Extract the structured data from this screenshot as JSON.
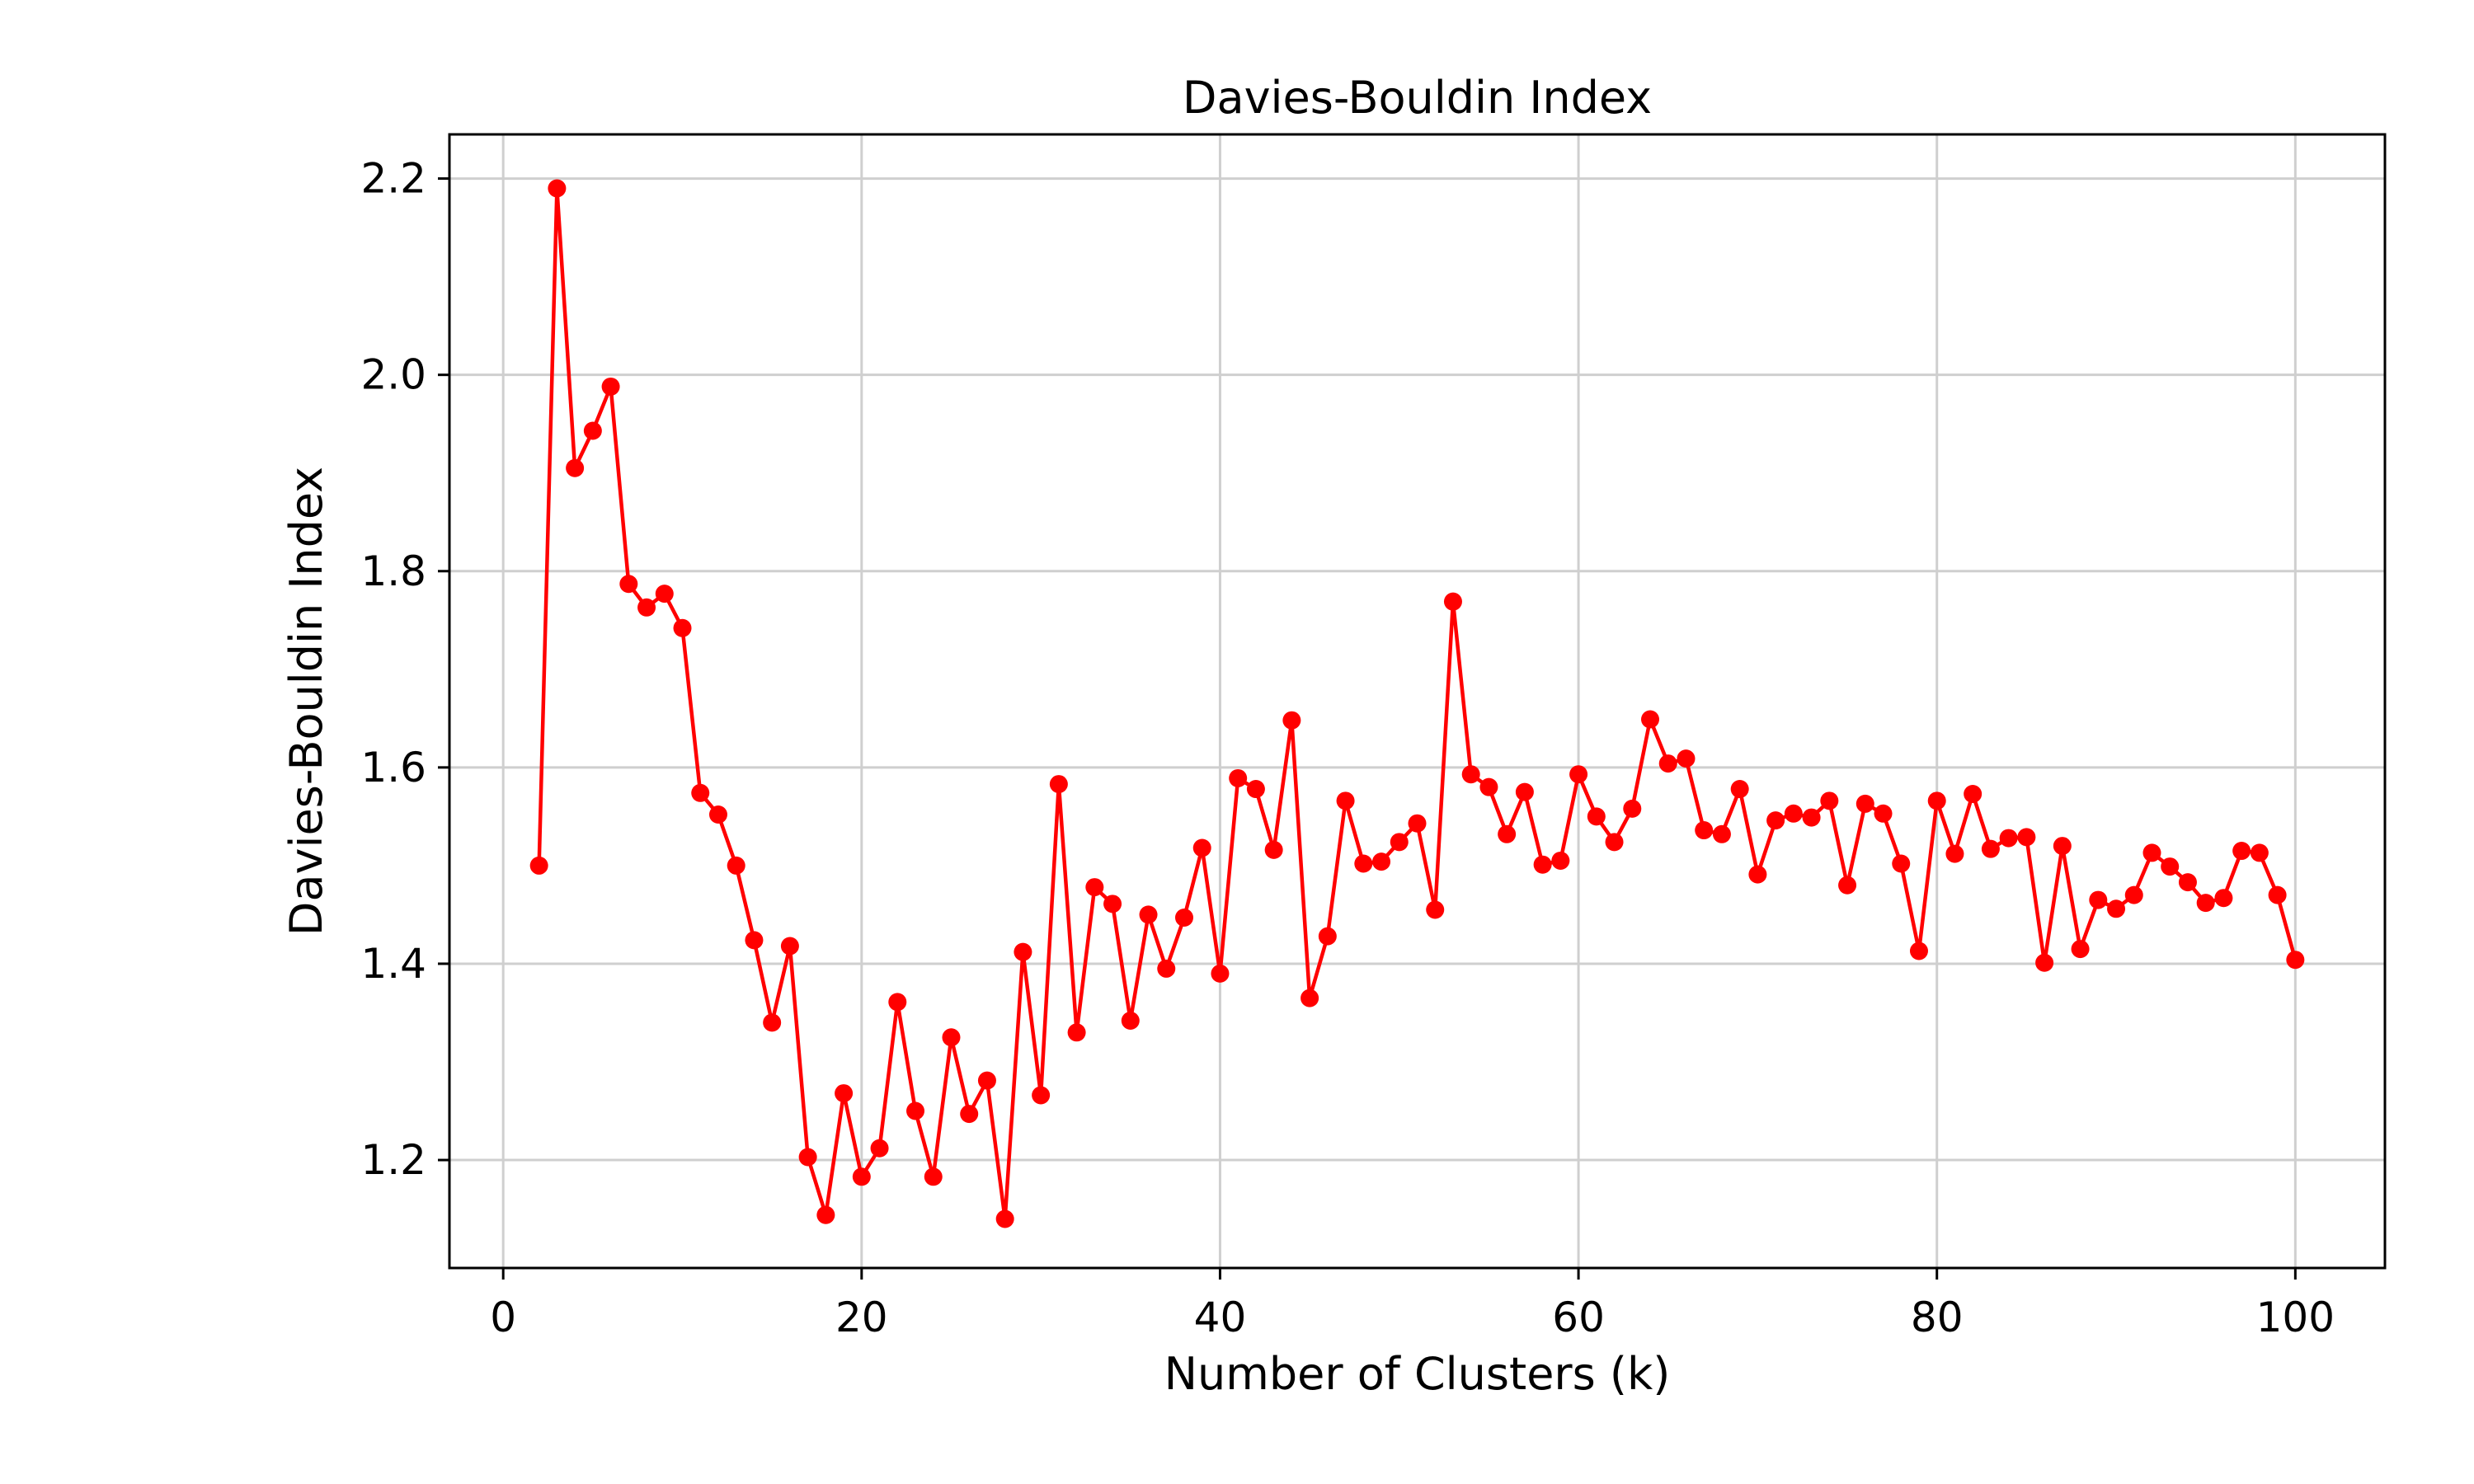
{
  "chart_data": {
    "type": "line",
    "title": "Davies-Bouldin Index",
    "xlabel": "Number of Clusters (k)",
    "ylabel": "Davies-Bouldin Index",
    "xlim": [
      -3,
      105
    ],
    "ylim": [
      1.09,
      2.245
    ],
    "xticks": [
      0,
      20,
      40,
      60,
      80,
      100
    ],
    "yticks": [
      1.2,
      1.4,
      1.6,
      1.8,
      2.0,
      2.2
    ],
    "xtick_labels": [
      "0",
      "20",
      "40",
      "60",
      "80",
      "100"
    ],
    "ytick_labels": [
      "1.2",
      "1.4",
      "1.6",
      "1.8",
      "2.0",
      "2.2"
    ],
    "grid": true,
    "line_color": "#ff0000",
    "series": [
      {
        "x": [
          2,
          3,
          4,
          5,
          6,
          7,
          8,
          9,
          10,
          11,
          12,
          13,
          14,
          15,
          16,
          17,
          18,
          19,
          20,
          21,
          22,
          23,
          24,
          25,
          26,
          27,
          28,
          29,
          30,
          31,
          32,
          33,
          34,
          35,
          36,
          37,
          38,
          39,
          40,
          41,
          42,
          43,
          44,
          45,
          46,
          47,
          48,
          49,
          50,
          51,
          52,
          53,
          54,
          55,
          56,
          57,
          58,
          59,
          60,
          61,
          62,
          63,
          64,
          65,
          66,
          67,
          68,
          69,
          70,
          71,
          72,
          73,
          74,
          75,
          76,
          77,
          78,
          79,
          80,
          81,
          82,
          83,
          84,
          85,
          86,
          87,
          88,
          89,
          90,
          91,
          92,
          93,
          94,
          95,
          96,
          97,
          98,
          99,
          100
        ],
        "y": [
          1.5,
          2.19,
          1.905,
          1.943,
          1.988,
          1.787,
          1.763,
          1.777,
          1.742,
          1.574,
          1.552,
          1.5,
          1.424,
          1.34,
          1.418,
          1.203,
          1.144,
          1.268,
          1.183,
          1.212,
          1.361,
          1.25,
          1.183,
          1.325,
          1.247,
          1.281,
          1.14,
          1.412,
          1.266,
          1.583,
          1.33,
          1.478,
          1.461,
          1.342,
          1.45,
          1.395,
          1.447,
          1.518,
          1.39,
          1.589,
          1.578,
          1.516,
          1.648,
          1.365,
          1.428,
          1.566,
          1.502,
          1.504,
          1.524,
          1.543,
          1.455,
          1.769,
          1.593,
          1.58,
          1.532,
          1.575,
          1.501,
          1.505,
          1.593,
          1.55,
          1.524,
          1.558,
          1.649,
          1.604,
          1.609,
          1.536,
          1.532,
          1.578,
          1.491,
          1.546,
          1.553,
          1.549,
          1.566,
          1.48,
          1.563,
          1.553,
          1.502,
          1.413,
          1.566,
          1.512,
          1.573,
          1.517,
          1.528,
          1.529,
          1.401,
          1.52,
          1.415,
          1.465,
          1.456,
          1.47,
          1.513,
          1.499,
          1.483,
          1.462,
          1.467,
          1.515,
          1.513,
          1.47,
          1.404
        ]
      }
    ]
  }
}
